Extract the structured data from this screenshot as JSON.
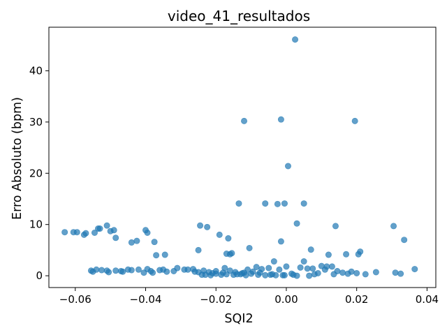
{
  "chart_data": {
    "type": "scatter",
    "title": "video_41_resultados",
    "xlabel": "SQI2",
    "ylabel": "Erro Absoluto (bpm)",
    "xlim": [
      -0.0675,
      0.0425
    ],
    "ylim": [
      -2.3,
      48.5
    ],
    "x_ticks": [
      -0.06,
      -0.04,
      -0.02,
      0.0,
      0.02,
      0.04
    ],
    "x_tick_labels": [
      "−0.06",
      "−0.04",
      "−0.02",
      "0.00",
      "0.02",
      "0.04"
    ],
    "y_ticks": [
      0,
      10,
      20,
      30,
      40
    ],
    "y_tick_labels": [
      "0",
      "10",
      "20",
      "30",
      "40"
    ],
    "grid": false,
    "marker_color": "#1f77b4",
    "marker_alpha": 0.7,
    "series": [
      {
        "x": [
          0.0025,
          -0.0015,
          -0.012,
          0.0195,
          0.0005,
          -0.0135,
          -0.006,
          -0.0025,
          -0.0005,
          0.005,
          0.003,
          -0.063,
          -0.0605,
          -0.0595,
          -0.0575,
          -0.057,
          -0.0545,
          -0.0535,
          -0.053,
          -0.051,
          -0.05,
          -0.049,
          -0.0485,
          -0.044,
          -0.0425,
          -0.04,
          -0.0395,
          -0.0375,
          -0.037,
          -0.0345,
          -0.025,
          -0.0245,
          -0.0225,
          -0.019,
          -0.017,
          -0.0165,
          -0.016,
          -0.0155,
          -0.0105,
          -0.0015,
          0.007,
          0.012,
          0.014,
          0.017,
          0.0205,
          0.021,
          0.0305,
          0.0335,
          0.005,
          -0.0035,
          0.0115,
          0.013,
          0.0145,
          0.01,
          0.0075,
          0.004,
          0.0,
          -0.002,
          -0.005,
          -0.007,
          -0.0085,
          -0.0095,
          -0.011,
          -0.0125,
          -0.0145,
          -0.016,
          -0.0175,
          -0.018,
          -0.02,
          -0.022,
          -0.0235,
          -0.0265,
          -0.029,
          -0.031,
          -0.034,
          -0.036,
          -0.0385,
          -0.0395,
          -0.0405,
          -0.045,
          -0.0465,
          -0.0485,
          -0.0505,
          -0.0525,
          -0.054,
          -0.0555,
          0.0175,
          0.0185,
          0.02,
          0.0255,
          0.031,
          0.0325,
          0.0365,
          0.0225,
          0.016,
          0.009,
          0.002,
          -0.001,
          -0.004,
          -0.006,
          -0.008,
          -0.01,
          -0.013,
          -0.015,
          -0.017,
          -0.021,
          -0.023,
          -0.026,
          -0.028,
          -0.032,
          -0.035,
          -0.038,
          -0.042,
          -0.044,
          -0.047,
          -0.051,
          -0.055,
          0.006,
          0.003,
          -0.003,
          0.011,
          0.0135,
          -0.012,
          -0.02,
          -0.024,
          0.008,
          0.0065,
          0.0015,
          -0.0005,
          -0.0045,
          -0.0075,
          -0.0115,
          -0.014,
          -0.0185,
          -0.0215,
          -0.025
        ],
        "y": [
          46.1,
          30.5,
          30.2,
          30.2,
          21.4,
          14.1,
          14.1,
          14.0,
          14.1,
          14.1,
          10.2,
          8.5,
          8.5,
          8.5,
          8.0,
          8.3,
          8.4,
          9.2,
          9.2,
          9.8,
          8.7,
          8.9,
          7.4,
          6.5,
          6.8,
          8.9,
          8.4,
          6.6,
          4.0,
          4.1,
          5.0,
          9.8,
          9.5,
          8.0,
          4.3,
          7.3,
          4.2,
          4.4,
          5.4,
          6.7,
          5.1,
          4.1,
          9.7,
          4.2,
          4.2,
          4.7,
          9.7,
          7.0,
          2.8,
          2.8,
          1.8,
          1.8,
          0.9,
          1.9,
          1.4,
          1.6,
          1.8,
          1.2,
          1.5,
          1.3,
          1.7,
          0.8,
          1.2,
          0.5,
          0.7,
          1.0,
          1.5,
          0.6,
          0.9,
          0.7,
          1.0,
          1.3,
          1.2,
          1.5,
          0.8,
          1.1,
          0.9,
          1.3,
          0.6,
          1.2,
          0.8,
          1.0,
          0.7,
          1.1,
          1.2,
          1.0,
          0.4,
          0.8,
          0.5,
          0.7,
          0.6,
          0.4,
          1.3,
          0.3,
          0.6,
          0.5,
          0.2,
          0.1,
          0.3,
          0.1,
          0.2,
          0.4,
          0.3,
          0.2,
          0.3,
          0.5,
          0.2,
          0.8,
          1.2,
          0.9,
          1.2,
          0.6,
          1.2,
          1.1,
          0.9,
          1.0,
          0.8,
          1.4,
          0.0,
          0.1,
          1.2,
          0.3,
          0.6,
          0.4,
          0.2,
          0.3,
          0.0,
          0.4,
          0.1,
          0.2,
          0.6,
          0.1,
          0.3,
          0.2,
          0.1,
          0.7
        ]
      }
    ]
  }
}
